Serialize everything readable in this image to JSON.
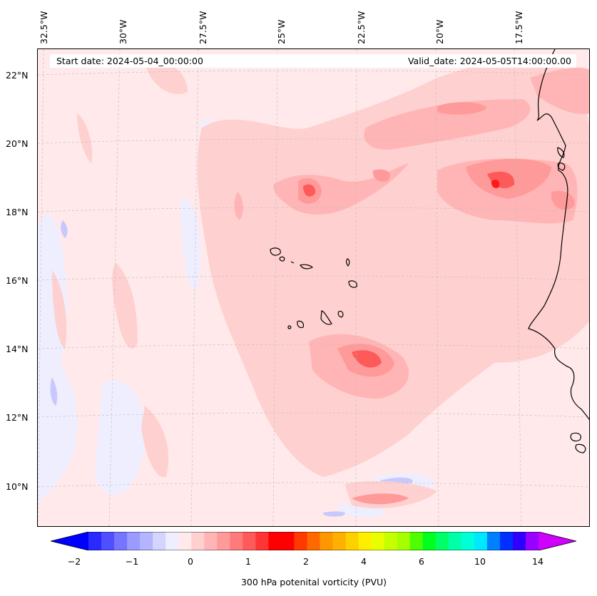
{
  "map": {
    "start_date": "Start date: 2024-05-04_00:00:00",
    "valid_date": "Valid_date: 2024-05-05T14:00:00.00",
    "longitude_labels": [
      "32.5°W",
      "30°W",
      "27.5°W",
      "25°W",
      "22.5°W",
      "20°W",
      "17.5°W"
    ],
    "latitude_labels": [
      "22°N",
      "20°N",
      "18°N",
      "16°N",
      "14°N",
      "12°N",
      "10°N"
    ],
    "colorbar": {
      "label": "300 hPa potenital vorticity (PVU)",
      "ticks": [
        "−2",
        "−1",
        "0",
        "1",
        "2",
        "4",
        "6",
        "10",
        "14"
      ],
      "colors": [
        "#0000ff",
        "#2a2aff",
        "#4f4fff",
        "#7575ff",
        "#9a9aff",
        "#b5b5ff",
        "#d4d4ff",
        "#eeeeff",
        "#ffe9ea",
        "#ffd0d0",
        "#ffb5b5",
        "#ff9a9a",
        "#ff7a7a",
        "#ff5a5a",
        "#ff3535",
        "#ff0000",
        "#ff0000",
        "#ff3a00",
        "#ff6a00",
        "#ff9800",
        "#ffb000",
        "#ffd000",
        "#ffee00",
        "#e8ff00",
        "#c6ff00",
        "#a6ff00",
        "#4dff00",
        "#00ff20",
        "#00ff66",
        "#00ffa8",
        "#00ffd8",
        "#00e8ff",
        "#0080ff",
        "#0030ff",
        "#3000ff",
        "#9800ff",
        "#d000ff"
      ]
    }
  }
}
